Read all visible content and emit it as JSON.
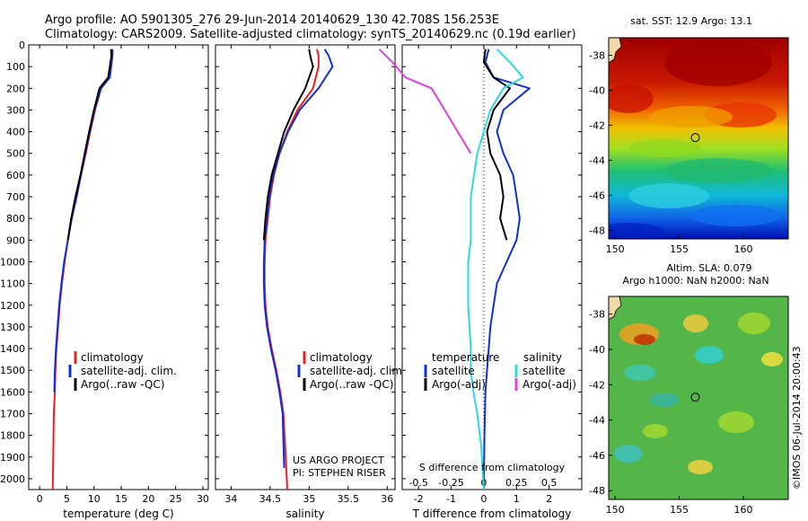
{
  "header": {
    "line1": "Argo profile: AO 5901305_276 29-Jun-2014 20140629_130 42.708S 156.253E",
    "line2": "Climatology: CARS2009. Satellite-adjusted climatology: synTS_20140629.nc (0.19d earlier)"
  },
  "colors": {
    "climatology": "#e82020",
    "satellite": "#1030d0",
    "argo": "#000000",
    "salinity_satellite": "#30d8d8",
    "salinity_argo": "#e040e0"
  },
  "chart_data": [
    {
      "type": "line",
      "name": "temperature profile",
      "xlabel": "temperature (deg C)",
      "ylabel": "",
      "xlim": [
        -2,
        31
      ],
      "ylim": [
        2050,
        0
      ],
      "xticks": [
        0,
        5,
        10,
        15,
        20,
        25,
        30
      ],
      "yticks": [
        0,
        100,
        200,
        300,
        400,
        500,
        600,
        700,
        800,
        900,
        1000,
        1100,
        1200,
        1300,
        1400,
        1500,
        1600,
        1700,
        1800,
        1900,
        2000
      ],
      "legend": [
        "climatology",
        "satellite-adj. clim.",
        "Argo(..raw -QC)"
      ],
      "legend_position": "bottom-center",
      "series": [
        {
          "name": "climatology",
          "color": "#e82020",
          "x": [
            13.1,
            13.2,
            12.8,
            11.3,
            10.2,
            9.3,
            8.5,
            7.6,
            6.8,
            5.9,
            5.2,
            4.6,
            4.1,
            3.7,
            3.4,
            3.1,
            2.9,
            2.8,
            2.6,
            2.5,
            2.4
          ],
          "y": [
            20,
            50,
            150,
            200,
            300,
            400,
            500,
            600,
            700,
            800,
            900,
            1000,
            1100,
            1200,
            1300,
            1400,
            1500,
            1600,
            1700,
            1900,
            2050
          ]
        },
        {
          "name": "satellite-adj. clim.",
          "color": "#1030d0",
          "x": [
            13.4,
            13.4,
            12.9,
            11.3,
            10.1,
            9.2,
            8.4,
            7.6,
            6.8,
            5.9,
            5.2,
            4.5,
            4.0,
            3.6,
            3.3,
            3.0,
            2.8,
            2.7
          ],
          "y": [
            20,
            50,
            150,
            200,
            300,
            400,
            500,
            600,
            700,
            800,
            900,
            1000,
            1100,
            1200,
            1300,
            1400,
            1500,
            1600
          ]
        },
        {
          "name": "Argo(..raw -QC)",
          "color": "#000000",
          "x": [
            13.2,
            13.2,
            12.6,
            11.0,
            10.0,
            9.1,
            8.3,
            7.5,
            6.6,
            5.8,
            5.2
          ],
          "y": [
            20,
            50,
            150,
            200,
            300,
            400,
            500,
            600,
            700,
            800,
            900
          ]
        }
      ]
    },
    {
      "type": "line",
      "name": "salinity profile",
      "xlabel": "salinity",
      "ylabel": "",
      "xlim": [
        33.8,
        36.1
      ],
      "ylim": [
        2050,
        0
      ],
      "xticks": [
        34,
        34.5,
        35,
        35.5,
        36
      ],
      "xticklabels": [
        "34",
        "34.5",
        "35",
        "35.5",
        "36"
      ],
      "legend": [
        "climatology",
        "satellite-adj. clim.",
        "Argo(..raw -QC)"
      ],
      "legend_position": "bottom-right",
      "annotations": [
        "US ARGO PROJECT",
        "PI: STEPHEN RISER"
      ],
      "series": [
        {
          "name": "climatology",
          "color": "#e82020",
          "x": [
            35.1,
            35.12,
            35.12,
            35.05,
            34.85,
            34.72,
            34.62,
            34.55,
            34.5,
            34.47,
            34.44,
            34.43,
            34.43,
            34.44,
            34.47,
            34.52,
            34.58,
            34.63,
            34.67,
            34.7,
            34.72
          ],
          "y": [
            20,
            50,
            100,
            200,
            300,
            400,
            500,
            600,
            700,
            800,
            900,
            1000,
            1100,
            1200,
            1300,
            1400,
            1500,
            1600,
            1700,
            1900,
            2050
          ]
        },
        {
          "name": "satellite-adj. clim.",
          "color": "#1030d0",
          "x": [
            35.2,
            35.25,
            35.3,
            35.12,
            34.88,
            34.73,
            34.62,
            34.54,
            34.49,
            34.46,
            34.43,
            34.42,
            34.42,
            34.43,
            34.46,
            34.51,
            34.57,
            34.62,
            34.66,
            34.68
          ],
          "y": [
            20,
            50,
            100,
            200,
            300,
            400,
            500,
            600,
            700,
            800,
            900,
            1000,
            1100,
            1200,
            1300,
            1400,
            1500,
            1600,
            1700,
            1950
          ]
        },
        {
          "name": "Argo(..raw -QC)",
          "color": "#000000",
          "x": [
            35.0,
            35.02,
            35.05,
            34.95,
            34.8,
            34.68,
            34.6,
            34.52,
            34.47,
            34.44,
            34.42
          ],
          "y": [
            20,
            60,
            100,
            200,
            300,
            400,
            500,
            600,
            700,
            800,
            900
          ]
        }
      ]
    },
    {
      "type": "line",
      "name": "difference from climatology",
      "xlabel": "T difference from climatology",
      "xlabel_top": "S difference from climatology",
      "xlim": [
        -2.5,
        3.0
      ],
      "ylim": [
        2050,
        0
      ],
      "xticks": [
        -2,
        -1,
        0,
        1,
        2
      ],
      "xticks_top": [
        -0.5,
        -0.25,
        0,
        0.25,
        0.5
      ],
      "legend": [
        "temperature",
        "satellite",
        "Argo(-adj)",
        "salinity",
        "satellite",
        "Argo(-adj)"
      ],
      "legend_position": "bottom-center",
      "series": [
        {
          "name": "temperature satellite",
          "color": "#1030d0",
          "x": [
            0.15,
            0.05,
            0.3,
            1.4,
            0.6,
            0.4,
            0.6,
            0.9,
            1.0,
            1.1,
            1.0,
            0.7,
            0.4,
            0.3,
            0.2,
            0.15,
            0.1,
            0.05,
            0.02,
            0.0
          ],
          "y": [
            20,
            80,
            150,
            200,
            300,
            400,
            500,
            600,
            700,
            800,
            900,
            1000,
            1100,
            1200,
            1300,
            1400,
            1500,
            1600,
            1800,
            2050
          ]
        },
        {
          "name": "temperature Argo(-adj)",
          "color": "#000000",
          "x": [
            0.05,
            0.0,
            0.3,
            0.8,
            0.3,
            0.1,
            0.2,
            0.5,
            0.6,
            0.5,
            0.7
          ],
          "y": [
            20,
            80,
            150,
            200,
            300,
            400,
            500,
            600,
            700,
            800,
            900
          ]
        },
        {
          "name": "salinity satellite",
          "color": "#30d8d8",
          "x": [
            0.1,
            0.2,
            0.3,
            0.15,
            0.05,
            0.0,
            -0.05,
            -0.1,
            -0.1,
            -0.12,
            -0.12,
            -0.1,
            -0.1,
            -0.08,
            -0.05,
            -0.02,
            0.0
          ],
          "y": [
            20,
            80,
            150,
            200,
            300,
            400,
            500,
            700,
            900,
            1000,
            1200,
            1400,
            1500,
            1600,
            1700,
            1850,
            2050
          ]
        },
        {
          "name": "salinity Argo(-adj)",
          "color": "#e040e0",
          "x": [
            -0.8,
            -0.7,
            -0.6,
            -0.4,
            -0.3,
            -0.2,
            -0.1
          ],
          "y": [
            20,
            80,
            150,
            200,
            300,
            400,
            500
          ]
        }
      ]
    },
    {
      "type": "heatmap",
      "name": "satellite SST map",
      "title": "sat. SST: 12.9  Argo: 13.1",
      "xlim": [
        149.5,
        163.5
      ],
      "ylim": [
        -48.5,
        -37
      ],
      "xticks": [
        150,
        155,
        160
      ],
      "yticks": [
        -38,
        -40,
        -42,
        -44,
        -46,
        -48
      ],
      "marker": {
        "lon": 156.253,
        "lat": -42.708
      }
    },
    {
      "type": "heatmap",
      "name": "altimetry SLA map",
      "title": "Altim. SLA: 0.079",
      "subtitle": "Argo h1000: NaN h2000: NaN",
      "xlim": [
        149.5,
        163.5
      ],
      "ylim": [
        -48.5,
        -37
      ],
      "xticks": [
        150,
        155,
        160
      ],
      "yticks": [
        -38,
        -40,
        -42,
        -44,
        -46,
        -48
      ],
      "marker": {
        "lon": 156.253,
        "lat": -42.708
      }
    }
  ],
  "footer_stamp": "©IMOS 06-Jul-2014 20:00:43"
}
